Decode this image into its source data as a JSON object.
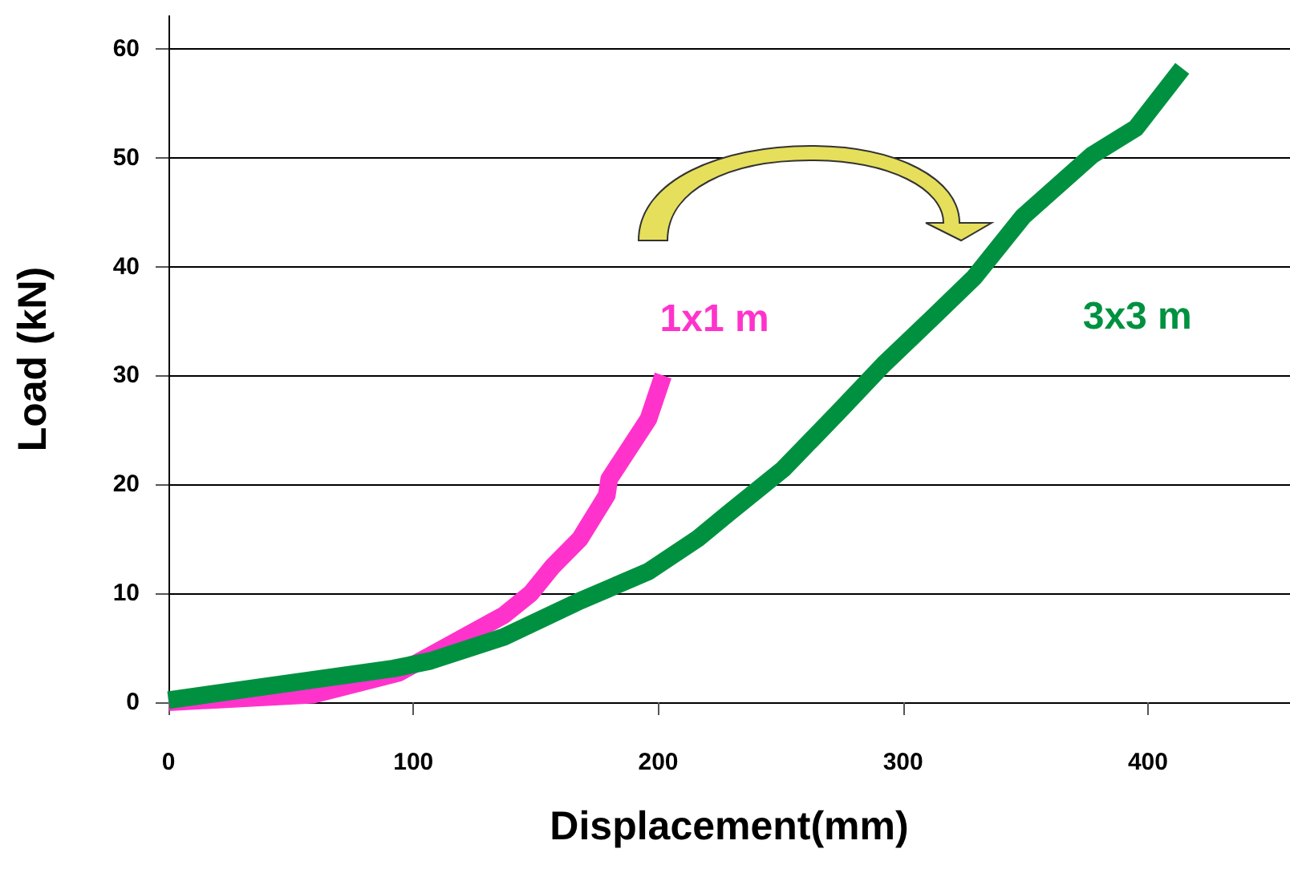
{
  "chart_data": {
    "type": "line",
    "xlabel": "Displacement(mm)",
    "ylabel": "Load (kN)",
    "xlim": [
      0,
      458
    ],
    "xticks": [
      0,
      100,
      200,
      300,
      400
    ],
    "ylim": [
      0,
      63
    ],
    "yticks": [
      0,
      10,
      20,
      30,
      40,
      50,
      60
    ],
    "grid": "y",
    "marker": "none",
    "line_style": "solid",
    "series": [
      {
        "name": "1x1 m",
        "color": "#ff33cc",
        "x": [
          0,
          59,
          94,
          137,
          148,
          157,
          168,
          179,
          180,
          196,
          202
        ],
        "values": [
          0,
          0.7,
          2.7,
          8,
          10,
          12.5,
          15,
          19,
          20.5,
          26,
          30
        ]
      },
      {
        "name": "3x3 m",
        "color": "#009140",
        "x": [
          0,
          92,
          107,
          137,
          168,
          196,
          216,
          229,
          251,
          273,
          292,
          312,
          329,
          349,
          377,
          395,
          414
        ],
        "values": [
          0.2,
          3.1,
          3.8,
          6,
          9.3,
          12,
          15,
          17.4,
          21.4,
          26.5,
          31,
          35.3,
          39,
          44.6,
          50.2,
          52.7,
          58.2
        ]
      }
    ]
  }
}
